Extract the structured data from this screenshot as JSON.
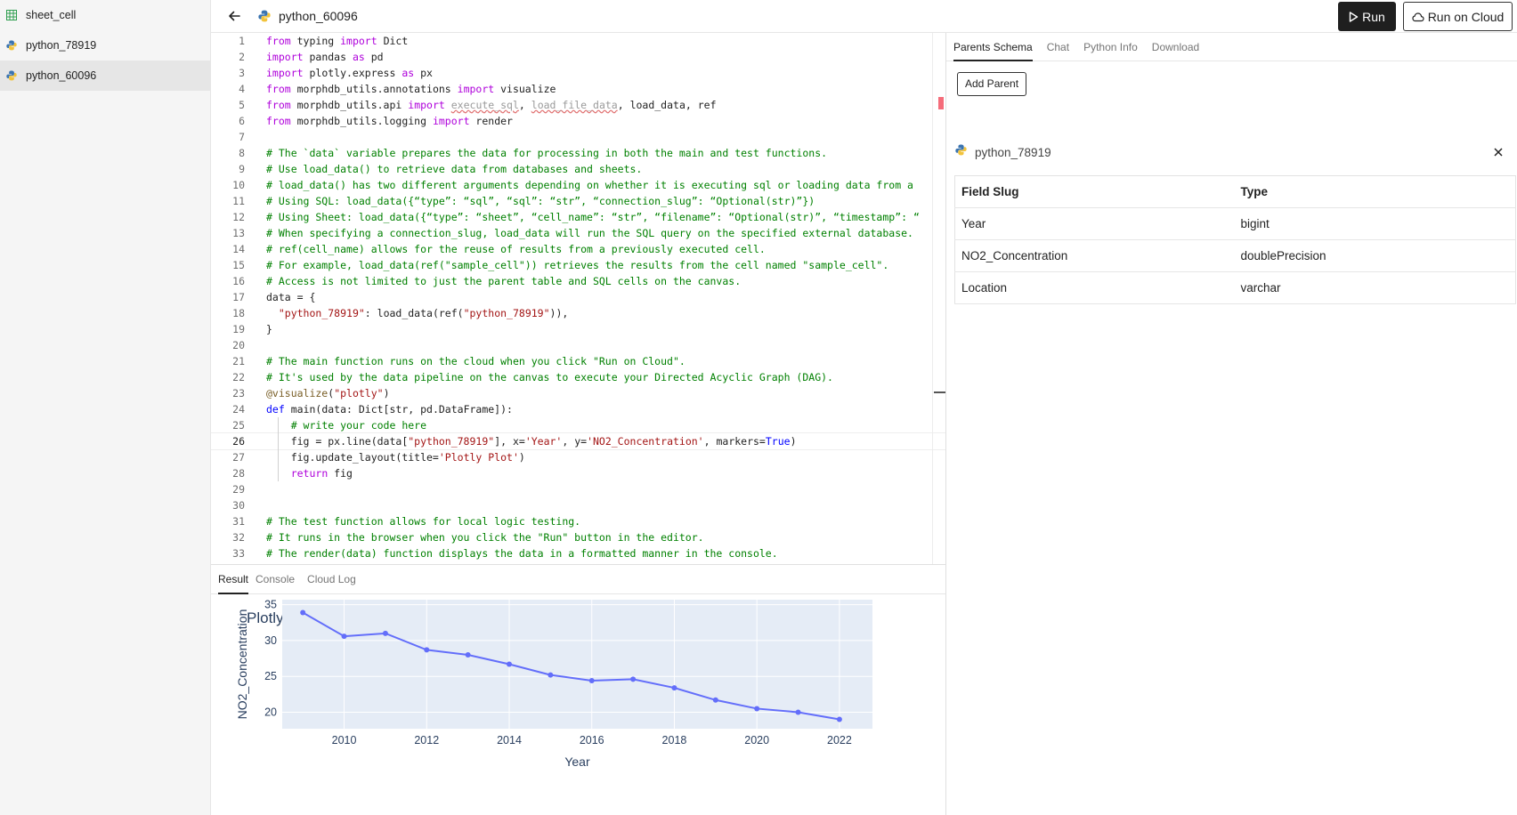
{
  "sidebar": {
    "items": [
      {
        "label": "sheet_cell",
        "icon": "sheet-icon"
      },
      {
        "label": "python_78919",
        "icon": "python-icon"
      },
      {
        "label": "python_60096",
        "icon": "python-icon",
        "active": true
      }
    ]
  },
  "header": {
    "title": "python_60096",
    "run_label": "Run",
    "run_cloud_label": "Run on Cloud"
  },
  "editor": {
    "current_line": 26,
    "lines": [
      "from typing import Dict",
      "import pandas as pd",
      "import plotly.express as px",
      "from morphdb_utils.annotations import visualize",
      "from morphdb_utils.api import execute_sql, load_file_data, load_data, ref",
      "from morphdb_utils.logging import render",
      "",
      "# The `data` variable prepares the data for processing in both the main and test functions.",
      "# Use load_data() to retrieve data from databases and sheets.",
      "# load_data() has two different arguments depending on whether it is executing sql or loading data from a",
      "# Using SQL: load_data({“type”: “sql”, “sql”: “str”, “connection_slug”: “Optional(str)”})",
      "# Using Sheet: load_data({“type”: “sheet”, “cell_name”: “str”, “filename”: “Optional(str)”, “timestamp”: “",
      "# When specifying a connection_slug, load_data will run the SQL query on the specified external database.",
      "# ref(cell_name) allows for the reuse of results from a previously executed cell.",
      "# For example, load_data(ref(\"sample_cell\")) retrieves the results from the cell named \"sample_cell\".",
      "# Access is not limited to just the parent table and SQL cells on the canvas.",
      "data = {",
      "  \"python_78919\": load_data(ref(\"python_78919\")),",
      "}",
      "",
      "# The main function runs on the cloud when you click \"Run on Cloud\".",
      "# It's used by the data pipeline on the canvas to execute your Directed Acyclic Graph (DAG).",
      "@visualize(\"plotly\")",
      "def main(data: Dict[str, pd.DataFrame]):",
      "    # write your code here",
      "    fig = px.line(data[\"python_78919\"], x='Year', y='NO2_Concentration', markers=True)",
      "    fig.update_layout(title='Plotly Plot')",
      "    return fig",
      "",
      "",
      "# The test function allows for local logic testing.",
      "# It runs in the browser when you click the \"Run\" button in the editor.",
      "# The render(data) function displays the data in a formatted manner in the console."
    ]
  },
  "bottom_tabs": [
    {
      "label": "Result",
      "active": true
    },
    {
      "label": "Console",
      "active": false
    },
    {
      "label": "Cloud Log",
      "active": false
    }
  ],
  "chart_data": {
    "type": "line",
    "title": "Plotly Plot",
    "xlabel": "Year",
    "ylabel": "NO2_Concentration",
    "x": [
      2009,
      2010,
      2011,
      2012,
      2013,
      2014,
      2015,
      2016,
      2017,
      2018,
      2019,
      2020,
      2021,
      2022
    ],
    "series": [
      {
        "values": [
          33.9,
          30.6,
          31.0,
          28.7,
          28.0,
          26.7,
          25.2,
          24.4,
          24.6,
          23.4,
          21.7,
          20.5,
          20.0,
          19.0
        ]
      }
    ],
    "xlim": [
      2008.5,
      2022.8
    ],
    "ylim": [
      17.7,
      35.7
    ],
    "xticks": [
      2010,
      2012,
      2014,
      2016,
      2018,
      2020,
      2022
    ],
    "yticks": [
      20,
      25,
      30,
      35
    ],
    "line_color": "#636efa",
    "plot_bg": "#e5ecf6",
    "grid": true
  },
  "right_panel": {
    "tabs": [
      {
        "label": "Parents Schema",
        "active": true
      },
      {
        "label": "Chat",
        "active": false
      },
      {
        "label": "Python Info",
        "active": false
      },
      {
        "label": "Download",
        "active": false
      }
    ],
    "add_parent_label": "Add Parent",
    "parent_name": "python_78919",
    "schema": {
      "headers": [
        "Field Slug",
        "Type"
      ],
      "rows": [
        [
          "Year",
          "bigint"
        ],
        [
          "NO2_Concentration",
          "doublePrecision"
        ],
        [
          "Location",
          "varchar"
        ]
      ]
    }
  }
}
